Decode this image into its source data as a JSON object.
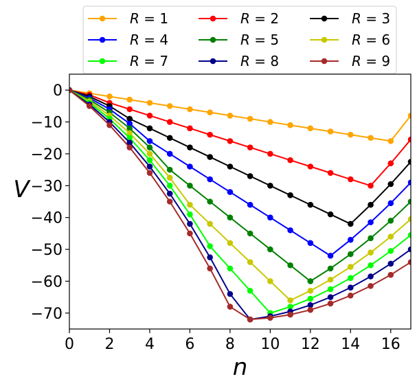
{
  "chart_data": {
    "type": "line",
    "title": "",
    "xlabel": "n",
    "ylabel": "V",
    "xlim": [
      0,
      17
    ],
    "ylim": [
      -75,
      5
    ],
    "grid": false,
    "legend_position": "top-center",
    "legend_columns": 3,
    "xticks": [
      0,
      2,
      4,
      6,
      8,
      10,
      12,
      14,
      16
    ],
    "xtick_labels": [
      "0",
      "2",
      "4",
      "6",
      "8",
      "10",
      "12",
      "14",
      "16"
    ],
    "yticks": [
      0,
      -10,
      -20,
      -30,
      -40,
      -50,
      -60,
      -70
    ],
    "ytick_labels": [
      "0",
      "−10",
      "−20",
      "−30",
      "−40",
      "−50",
      "−60",
      "−70"
    ],
    "series": [
      {
        "name": "R = 1",
        "var": "R",
        "num": "1",
        "color": "#ffa500",
        "x": [
          0,
          1,
          2,
          3,
          4,
          5,
          6,
          7,
          8,
          9,
          10,
          11,
          12,
          13,
          14,
          15,
          16,
          17
        ],
        "y": [
          0,
          -1,
          -2,
          -3,
          -4,
          -5,
          -6,
          -7,
          -8,
          -9,
          -10,
          -11,
          -12,
          -13,
          -14,
          -15,
          -16,
          -8
        ]
      },
      {
        "name": "R = 2",
        "var": "R",
        "num": "2",
        "color": "#ff0000",
        "x": [
          0,
          1,
          2,
          3,
          4,
          5,
          6,
          7,
          8,
          9,
          10,
          11,
          12,
          13,
          14,
          15,
          16,
          17
        ],
        "y": [
          0,
          -1.5,
          -4,
          -6,
          -8,
          -10,
          -12,
          -14,
          -16,
          -18,
          -20,
          -22,
          -24,
          -26,
          -28,
          -30,
          -23,
          -15.5
        ]
      },
      {
        "name": "R = 3",
        "var": "R",
        "num": "3",
        "color": "#000000",
        "x": [
          0,
          1,
          2,
          3,
          4,
          5,
          6,
          7,
          8,
          9,
          10,
          11,
          12,
          13,
          14,
          15,
          16,
          17
        ],
        "y": [
          0,
          -2,
          -5,
          -9,
          -12,
          -15,
          -18,
          -21,
          -24,
          -27,
          -30,
          -33,
          -36,
          -39,
          -42,
          -36,
          -29.5,
          -22.5
        ]
      },
      {
        "name": "R = 4",
        "var": "R",
        "num": "4",
        "color": "#0000ff",
        "x": [
          0,
          1,
          2,
          3,
          4,
          5,
          6,
          7,
          8,
          9,
          10,
          11,
          12,
          13,
          14,
          15,
          16,
          17
        ],
        "y": [
          0,
          -2.5,
          -6,
          -10.5,
          -16,
          -20,
          -24,
          -28,
          -32,
          -36,
          -40,
          -44,
          -48,
          -52,
          -47,
          -41.5,
          -35.5,
          -29
        ]
      },
      {
        "name": "R = 5",
        "var": "R",
        "num": "5",
        "color": "#008000",
        "x": [
          0,
          1,
          2,
          3,
          4,
          5,
          6,
          7,
          8,
          9,
          10,
          11,
          12,
          13,
          14,
          15,
          16,
          17
        ],
        "y": [
          0,
          -3,
          -7,
          -12,
          -18,
          -25,
          -30,
          -35,
          -40,
          -45,
          -50,
          -55,
          -60,
          -56,
          -51.5,
          -46.5,
          -41,
          -35
        ]
      },
      {
        "name": "R = 6",
        "var": "R",
        "num": "6",
        "color": "#c8c800",
        "x": [
          0,
          1,
          2,
          3,
          4,
          5,
          6,
          7,
          8,
          9,
          10,
          11,
          12,
          13,
          14,
          15,
          16,
          17
        ],
        "y": [
          0,
          -3.5,
          -8,
          -13.5,
          -20,
          -27.5,
          -36,
          -42,
          -48,
          -54,
          -60,
          -66,
          -63,
          -59.5,
          -55.5,
          -51,
          -46,
          -40.5
        ]
      },
      {
        "name": "R = 7",
        "var": "R",
        "num": "7",
        "color": "#00ff00",
        "x": [
          0,
          1,
          2,
          3,
          4,
          5,
          6,
          7,
          8,
          9,
          10,
          11,
          12,
          13,
          14,
          15,
          16,
          17
        ],
        "y": [
          0,
          -4,
          -9,
          -15,
          -22,
          -30,
          -39,
          -49,
          -56,
          -63,
          -70,
          -68,
          -65.5,
          -62.5,
          -59,
          -55,
          -50.5,
          -45.5
        ]
      },
      {
        "name": "R = 8",
        "var": "R",
        "num": "8",
        "color": "#00008b",
        "x": [
          0,
          1,
          2,
          3,
          4,
          5,
          6,
          7,
          8,
          9,
          10,
          11,
          12,
          13,
          14,
          15,
          16,
          17
        ],
        "y": [
          0,
          -4.5,
          -10,
          -16.5,
          -24,
          -32.5,
          -42,
          -52.5,
          -64,
          -72,
          -71,
          -69.5,
          -67.5,
          -65,
          -62,
          -58.5,
          -54.5,
          -50
        ]
      },
      {
        "name": "R = 9",
        "var": "R",
        "num": "9",
        "color": "#a52a2a",
        "x": [
          0,
          1,
          2,
          3,
          4,
          5,
          6,
          7,
          8,
          9,
          10,
          11,
          12,
          13,
          14,
          15,
          16,
          17
        ],
        "y": [
          0,
          -5,
          -11,
          -18,
          -26,
          -35,
          -45,
          -56,
          -68,
          -72,
          -71.5,
          -70.5,
          -69,
          -67,
          -64.5,
          -61.5,
          -58,
          -54
        ]
      }
    ]
  }
}
